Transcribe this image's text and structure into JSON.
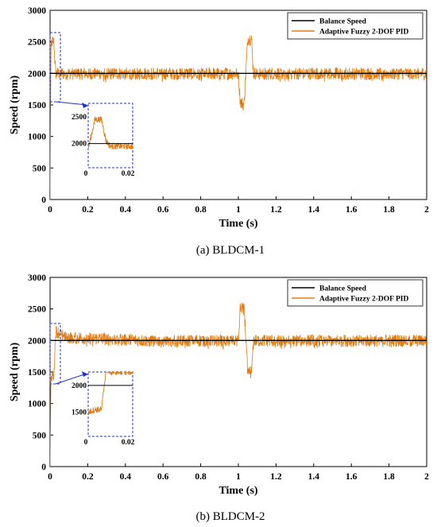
{
  "chart_data": [
    {
      "type": "line",
      "caption": "(a) BLDCM-1",
      "xlabel": "Time (s)",
      "ylabel": "Speed (rpm)",
      "xlim": [
        0,
        2
      ],
      "ylim": [
        0,
        3000
      ],
      "xticks": [
        "0",
        "0.2",
        "0.4",
        "0.6",
        "0.8",
        "1",
        "1.2",
        "1.4",
        "1.6",
        "1.8",
        "2"
      ],
      "yticks": [
        "0",
        "500",
        "1000",
        "1500",
        "2000",
        "2500",
        "3000"
      ],
      "legend": {
        "placement": "top-right",
        "entries": [
          "Balance Speed",
          "Adaptive Fuzzy 2-DOF PID"
        ]
      },
      "series": [
        {
          "name": "Balance Speed",
          "color": "#000000",
          "x": [
            0,
            2
          ],
          "y": [
            2000,
            2000
          ]
        },
        {
          "name": "Adaptive Fuzzy 2-DOF PID",
          "color": "#E07B10",
          "x": [
            0,
            0.005,
            0.02,
            0.03,
            0.1,
            0.5,
            1.0,
            1.01,
            1.03,
            1.05,
            1.07,
            1.08,
            1.5,
            2.0
          ],
          "y": [
            0,
            2500,
            2500,
            2000,
            2000,
            2000,
            2000,
            1550,
            1500,
            2550,
            2550,
            2000,
            2000,
            2000
          ],
          "noise_band_rpm": 150
        }
      ],
      "inset": {
        "xlim": [
          0,
          0.02
        ],
        "xticks": [
          "0",
          "0.02"
        ],
        "yticks": [
          "2000",
          "2500"
        ],
        "x": [
          0,
          0.003,
          0.006,
          0.008,
          0.01,
          0.015,
          0.02
        ],
        "y": [
          1900,
          2450,
          2450,
          2050,
          1950,
          1950,
          1950
        ]
      }
    },
    {
      "type": "line",
      "caption": "(b) BLDCM-2",
      "xlabel": "Time (s)",
      "ylabel": "Speed (rpm)",
      "xlim": [
        0,
        2
      ],
      "ylim": [
        0,
        3000
      ],
      "xticks": [
        "0",
        "0.2",
        "0.4",
        "0.6",
        "0.8",
        "1",
        "1.2",
        "1.4",
        "1.6",
        "1.8",
        "2"
      ],
      "yticks": [
        "0",
        "500",
        "1000",
        "1500",
        "2000",
        "2500",
        "3000"
      ],
      "legend": {
        "placement": "top-right",
        "entries": [
          "Balance Speed",
          "Adaptive Fuzzy 2-DOF PID"
        ]
      },
      "series": [
        {
          "name": "Balance Speed",
          "color": "#000000",
          "x": [
            0,
            2
          ],
          "y": [
            2000,
            2000
          ]
        },
        {
          "name": "Adaptive Fuzzy 2-DOF PID",
          "color": "#E07B10",
          "x": [
            0,
            0.005,
            0.02,
            0.03,
            0.1,
            0.5,
            1.0,
            1.01,
            1.03,
            1.05,
            1.07,
            1.08,
            1.5,
            2.0
          ],
          "y": [
            0,
            1450,
            1450,
            2150,
            2050,
            2000,
            2000,
            2500,
            2550,
            1500,
            1500,
            2000,
            2000,
            2000
          ],
          "noise_band_rpm": 150
        }
      ],
      "inset": {
        "xlim": [
          0,
          0.02
        ],
        "xticks": [
          "0",
          "0.02"
        ],
        "yticks": [
          "1500",
          "2000"
        ],
        "x": [
          0,
          0.003,
          0.006,
          0.008,
          0.01,
          0.015,
          0.02
        ],
        "y": [
          1500,
          1550,
          1550,
          2300,
          2250,
          2250,
          2250
        ]
      }
    }
  ]
}
